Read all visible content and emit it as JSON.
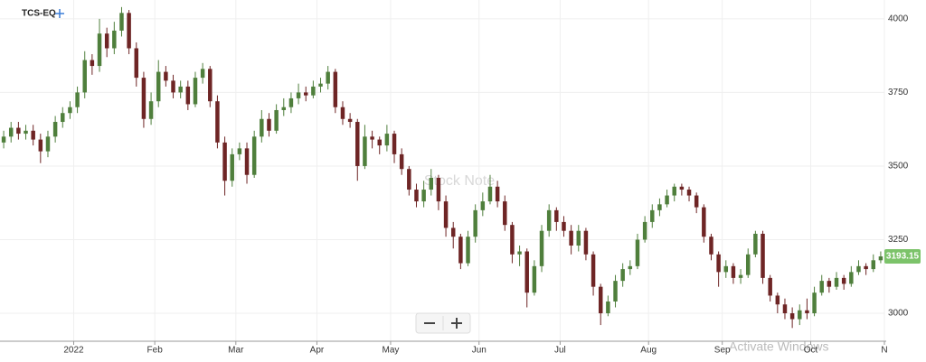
{
  "chart_data": {
    "type": "candlestick",
    "title": "TCS-EQ",
    "watermark": "Stock Note",
    "overlay": "Activate Windows",
    "up_color": "#4f7f3c",
    "down_color": "#6e2525",
    "last_color": "#7cc36a",
    "ylim": [
      2905,
      4064
    ],
    "yticks": [
      3000,
      3250,
      3500,
      3750,
      4000
    ],
    "xlim": [
      0,
      120
    ],
    "xticks": [
      {
        "value": 10,
        "label": "2022"
      },
      {
        "value": 21,
        "label": "Feb"
      },
      {
        "value": 32,
        "label": "Mar"
      },
      {
        "value": 43,
        "label": "Apr"
      },
      {
        "value": 53,
        "label": "May"
      },
      {
        "value": 65,
        "label": "Jun"
      },
      {
        "value": 76,
        "label": "Jul"
      },
      {
        "value": 88,
        "label": "Aug"
      },
      {
        "value": 98,
        "label": "Sep"
      },
      {
        "value": 110,
        "label": "Oct"
      },
      {
        "value": 120,
        "label": "N"
      }
    ],
    "grid": true,
    "open": [
      3580,
      3600,
      3630,
      3610,
      3620,
      3590,
      3550,
      3600,
      3650,
      3680,
      3700,
      3750,
      3860,
      3840,
      3950,
      3900,
      3960,
      4020,
      3900,
      3800,
      3660,
      3720,
      3820,
      3790,
      3750,
      3770,
      3710,
      3800,
      3830,
      3720,
      3580,
      3450,
      3540,
      3560,
      3470,
      3600,
      3660,
      3620,
      3690,
      3700,
      3730,
      3750,
      3740,
      3770,
      3780,
      3820,
      3700,
      3660,
      3650,
      3500,
      3600,
      3590,
      3570,
      3610,
      3540,
      3490,
      3420,
      3380,
      3420,
      3460,
      3380,
      3290,
      3260,
      3170,
      3260,
      3350,
      3380,
      3430,
      3380,
      3300,
      3200,
      3210,
      3070,
      3160,
      3280,
      3350,
      3310,
      3280,
      3230,
      3280,
      3200,
      3090,
      3000,
      3040,
      3110,
      3150,
      3160,
      3250,
      3310,
      3350,
      3370,
      3400,
      3430,
      3420,
      3400,
      3360,
      3260,
      3200,
      3140,
      3160,
      3120,
      3130,
      3200,
      3270,
      3120,
      3060,
      3030,
      3000,
      2980,
      3010,
      3000,
      3070,
      3110,
      3090,
      3120,
      3100,
      3140,
      3160,
      3150,
      3180
    ],
    "high": [
      3620,
      3650,
      3650,
      3640,
      3640,
      3610,
      3620,
      3670,
      3700,
      3720,
      3770,
      3890,
      3880,
      4000,
      3970,
      3990,
      4040,
      4030,
      3920,
      3820,
      3750,
      3860,
      3840,
      3810,
      3790,
      3790,
      3820,
      3850,
      3840,
      3740,
      3600,
      3560,
      3580,
      3580,
      3620,
      3690,
      3680,
      3710,
      3730,
      3750,
      3780,
      3770,
      3790,
      3800,
      3840,
      3830,
      3720,
      3680,
      3660,
      3640,
      3620,
      3600,
      3640,
      3620,
      3560,
      3500,
      3440,
      3450,
      3490,
      3470,
      3400,
      3310,
      3270,
      3280,
      3370,
      3410,
      3470,
      3450,
      3400,
      3310,
      3230,
      3220,
      3180,
      3300,
      3370,
      3360,
      3330,
      3300,
      3300,
      3290,
      3210,
      3100,
      3060,
      3130,
      3170,
      3180,
      3270,
      3330,
      3370,
      3390,
      3420,
      3440,
      3440,
      3430,
      3410,
      3370,
      3270,
      3210,
      3180,
      3170,
      3150,
      3220,
      3280,
      3280,
      3130,
      3070,
      3050,
      3020,
      3030,
      3050,
      3090,
      3130,
      3120,
      3140,
      3130,
      3160,
      3180,
      3170,
      3200,
      3210
    ],
    "low": [
      3560,
      3580,
      3590,
      3590,
      3570,
      3510,
      3530,
      3580,
      3630,
      3660,
      3680,
      3730,
      3810,
      3820,
      3870,
      3880,
      3940,
      3880,
      3770,
      3630,
      3640,
      3700,
      3770,
      3730,
      3730,
      3690,
      3700,
      3780,
      3700,
      3560,
      3400,
      3430,
      3520,
      3440,
      3460,
      3580,
      3600,
      3610,
      3670,
      3680,
      3710,
      3720,
      3730,
      3750,
      3760,
      3680,
      3640,
      3630,
      3450,
      3490,
      3560,
      3540,
      3550,
      3510,
      3470,
      3400,
      3360,
      3360,
      3400,
      3350,
      3260,
      3220,
      3150,
      3160,
      3240,
      3330,
      3370,
      3360,
      3280,
      3170,
      3160,
      3020,
      3060,
      3140,
      3260,
      3280,
      3260,
      3200,
      3210,
      3180,
      3060,
      2960,
      2990,
      3020,
      3090,
      3130,
      3150,
      3240,
      3290,
      3330,
      3360,
      3380,
      3400,
      3380,
      3340,
      3240,
      3180,
      3090,
      3120,
      3100,
      3100,
      3120,
      3190,
      3100,
      3040,
      3000,
      2980,
      2950,
      2960,
      2980,
      2990,
      3060,
      3070,
      3080,
      3080,
      3090,
      3130,
      3130,
      3140,
      3170
    ],
    "close": [
      3600,
      3630,
      3610,
      3620,
      3590,
      3550,
      3600,
      3650,
      3680,
      3700,
      3750,
      3860,
      3840,
      3950,
      3900,
      3960,
      4020,
      3900,
      3800,
      3660,
      3720,
      3820,
      3790,
      3750,
      3770,
      3710,
      3800,
      3830,
      3720,
      3580,
      3450,
      3540,
      3560,
      3470,
      3600,
      3660,
      3620,
      3690,
      3700,
      3730,
      3750,
      3740,
      3770,
      3780,
      3820,
      3700,
      3660,
      3650,
      3500,
      3600,
      3590,
      3570,
      3610,
      3540,
      3490,
      3420,
      3380,
      3420,
      3460,
      3380,
      3290,
      3260,
      3170,
      3260,
      3350,
      3380,
      3430,
      3380,
      3300,
      3200,
      3210,
      3070,
      3160,
      3280,
      3350,
      3310,
      3280,
      3230,
      3280,
      3200,
      3090,
      3000,
      3040,
      3110,
      3150,
      3160,
      3250,
      3310,
      3350,
      3370,
      3400,
      3430,
      3420,
      3400,
      3360,
      3260,
      3200,
      3140,
      3160,
      3120,
      3130,
      3200,
      3270,
      3120,
      3060,
      3030,
      3000,
      2980,
      3010,
      3000,
      3070,
      3110,
      3090,
      3120,
      3100,
      3140,
      3160,
      3150,
      3180,
      3193.15
    ]
  }
}
